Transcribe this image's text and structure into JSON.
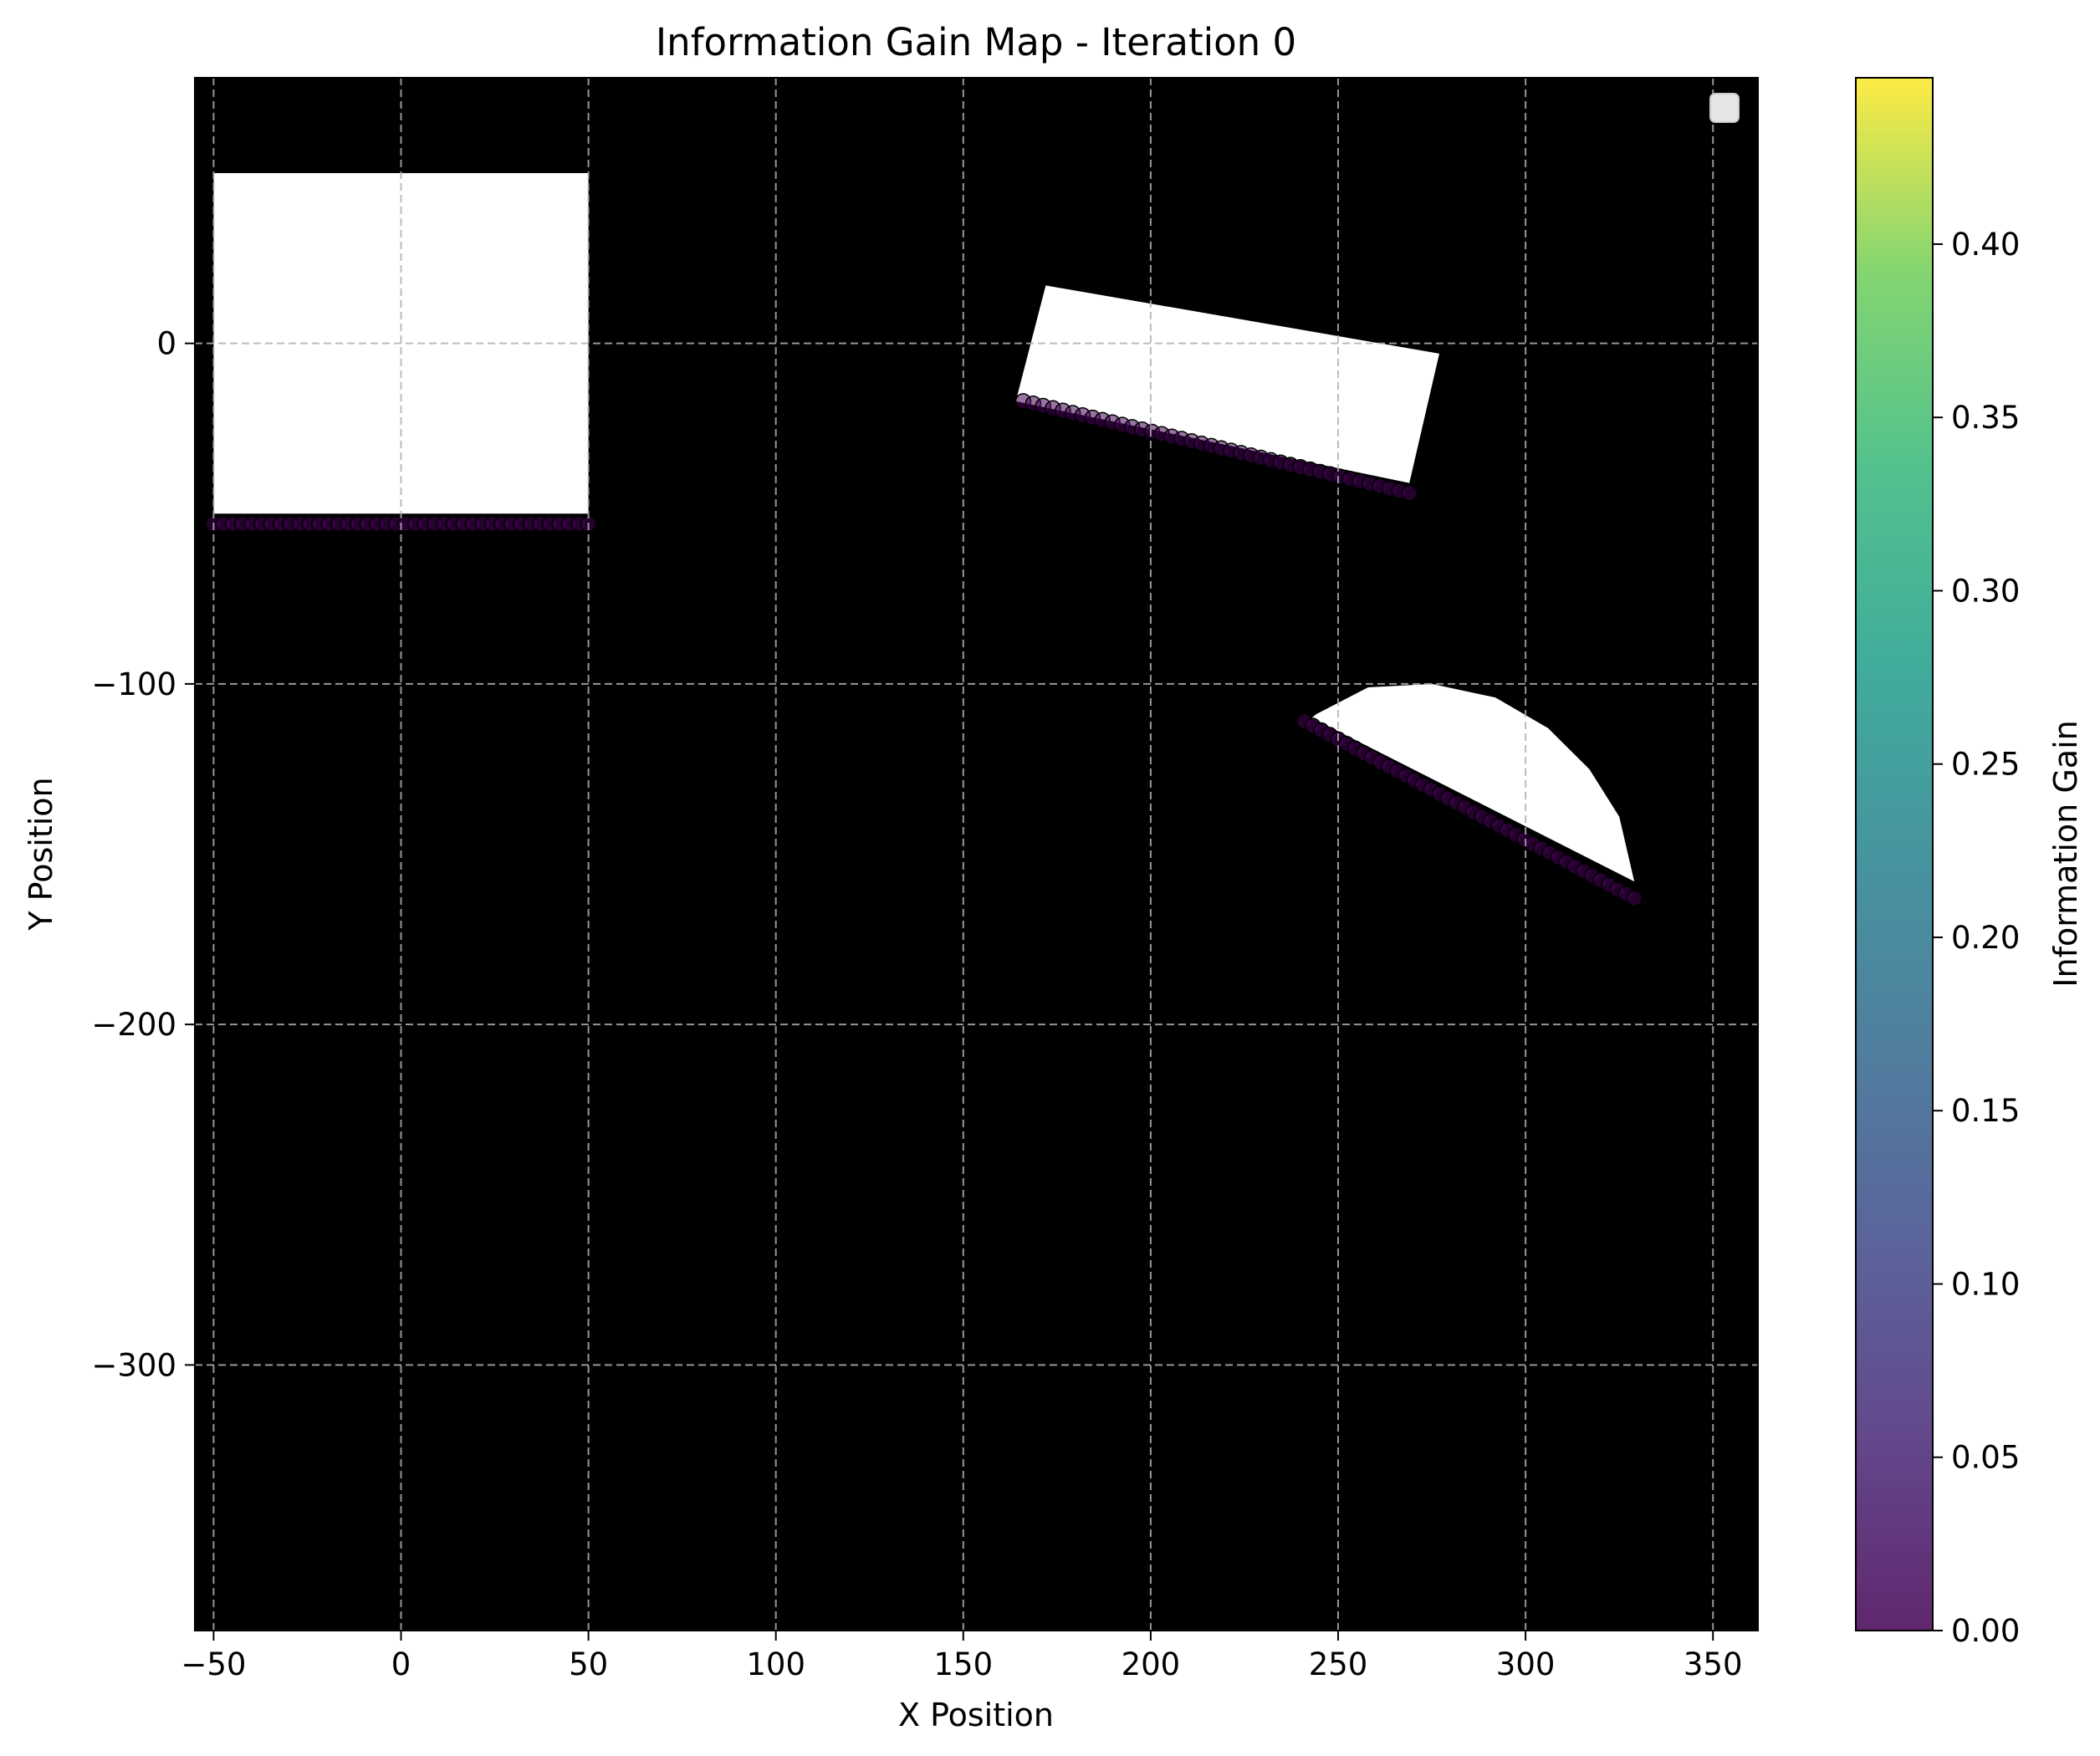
{
  "chart_data": {
    "type": "heatmap",
    "title": "Information Gain Map - Iteration 0",
    "xlabel": "X Position",
    "ylabel": "Y Position",
    "xlim": [
      -55,
      362
    ],
    "ylim": [
      -378,
      78
    ],
    "xticks": [
      -50,
      0,
      50,
      100,
      150,
      200,
      250,
      300,
      350
    ],
    "xtick_labels": [
      "−50",
      "0",
      "50",
      "100",
      "150",
      "200",
      "250",
      "300",
      "350"
    ],
    "yticks": [
      0,
      -100,
      -200,
      -300
    ],
    "ytick_labels": [
      "0",
      "−100",
      "−200",
      "−300"
    ],
    "grid": true,
    "background_color": "#000000",
    "obstacle_color": "#ffffff",
    "legend": {
      "placement": "top-right",
      "entries": []
    },
    "colorbar": {
      "label": "Information Gain",
      "colormap": "viridis",
      "range": [
        0,
        0.448
      ],
      "ticks": [
        0.0,
        0.05,
        0.1,
        0.15,
        0.2,
        0.25,
        0.3,
        0.35,
        0.4
      ],
      "tick_labels": [
        "0.00",
        "0.05",
        "0.10",
        "0.15",
        "0.20",
        "0.25",
        "0.30",
        "0.35",
        "0.40"
      ]
    },
    "obstacles": [
      {
        "shape": "rectangle",
        "x": [
          -50,
          50
        ],
        "y": [
          -50,
          50
        ]
      },
      {
        "shape": "polygon",
        "points": [
          [
            172,
            17
          ],
          [
            277,
            -3
          ],
          [
            269,
            -41
          ],
          [
            164,
            -17
          ]
        ]
      },
      {
        "shape": "half-disk",
        "points": [
          [
            244,
            -109
          ],
          [
            258,
            -101
          ],
          [
            275,
            -100
          ],
          [
            292,
            -104
          ],
          [
            306,
            -113
          ],
          [
            317,
            -125
          ],
          [
            325,
            -139
          ],
          [
            329,
            -158
          ],
          [
            243,
            -110
          ]
        ]
      }
    ],
    "frontier_points": [
      {
        "segment": "rect-bottom-edge",
        "from": [
          -50,
          -53
        ],
        "to": [
          50,
          -53
        ],
        "count": 40,
        "value": 0.0
      },
      {
        "segment": "tilted-rect-bottom-edge",
        "from": [
          166,
          -17
        ],
        "to": [
          269,
          -44
        ],
        "count": 40,
        "value": 0.0
      },
      {
        "segment": "half-disk-flat-edge",
        "from": [
          241,
          -111
        ],
        "to": [
          329,
          -163
        ],
        "count": 40,
        "value": 0.0
      }
    ]
  }
}
